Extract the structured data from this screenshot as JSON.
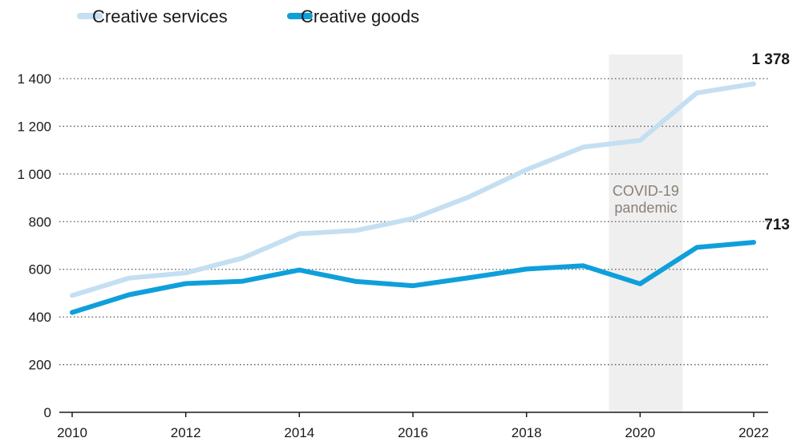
{
  "chart_data": {
    "type": "line",
    "title": "",
    "xlabel": "",
    "ylabel": "",
    "x": [
      2010,
      2011,
      2012,
      2013,
      2014,
      2015,
      2016,
      2017,
      2018,
      2019,
      2020,
      2021,
      2022
    ],
    "xticks": [
      2010,
      2012,
      2014,
      2016,
      2018,
      2020,
      2022
    ],
    "xtick_labels": [
      "2010",
      "2012",
      "2014",
      "2016",
      "2018",
      "2020",
      "2022"
    ],
    "xlim": [
      2010,
      2022
    ],
    "ylim": [
      0,
      1400
    ],
    "yticks": [
      0,
      200,
      400,
      600,
      800,
      1000,
      1200,
      1400
    ],
    "ytick_labels": [
      "0",
      "200",
      "400",
      "600",
      "800",
      "1 000",
      "1 200",
      "1 400"
    ],
    "grid": "horizontal dotted",
    "legend_position": "top-left",
    "series": [
      {
        "name": "Creative services",
        "color": "#c5dff2",
        "values": [
          490,
          563,
          585,
          647,
          749,
          763,
          813,
          905,
          1018,
          1113,
          1141,
          1340,
          1378
        ],
        "end_label": "1 378"
      },
      {
        "name": "Creative goods",
        "color": "#0f9fdb",
        "values": [
          419,
          493,
          540,
          550,
          597,
          549,
          531,
          565,
          601,
          615,
          539,
          692,
          713
        ],
        "end_label": "713"
      }
    ],
    "annotation_band": {
      "x_start": 2019.45,
      "x_end": 2020.75,
      "label_lines": [
        "COVID-19",
        "pandemic"
      ],
      "color": "#efefef",
      "label_color": "#8a8078"
    }
  }
}
